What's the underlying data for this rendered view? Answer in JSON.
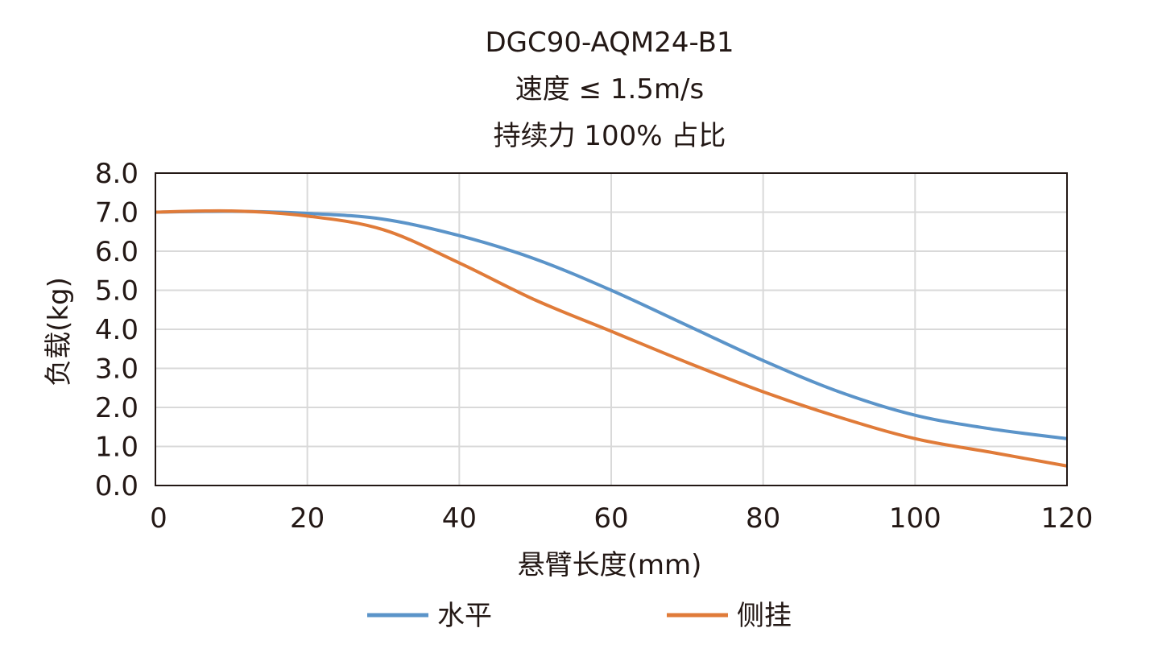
{
  "chart_data": {
    "type": "line",
    "title": [
      "DGC90-AQM24-B1",
      "速度 ≤ 1.5m/s",
      "持续力 100% 占比"
    ],
    "xlabel": "悬臂长度(mm)",
    "ylabel": "负载(kg)",
    "xlim": [
      0,
      120
    ],
    "ylim": [
      0,
      8
    ],
    "xticks": [
      "0",
      "20",
      "40",
      "60",
      "80",
      "100",
      "120"
    ],
    "yticks": [
      "0.0",
      "1.0",
      "2.0",
      "3.0",
      "4.0",
      "5.0",
      "6.0",
      "7.0",
      "8.0"
    ],
    "grid": true,
    "legend_position": "bottom",
    "x": [
      0,
      10,
      20,
      30,
      40,
      50,
      60,
      70,
      80,
      90,
      100,
      110,
      120
    ],
    "series": [
      {
        "name": "水平",
        "color": "#5b94c9",
        "values": [
          7.0,
          7.02,
          6.97,
          6.82,
          6.4,
          5.8,
          5.0,
          4.1,
          3.2,
          2.4,
          1.8,
          1.45,
          1.2
        ]
      },
      {
        "name": "侧挂",
        "color": "#e07b39",
        "values": [
          7.0,
          7.03,
          6.9,
          6.55,
          5.7,
          4.75,
          3.95,
          3.15,
          2.4,
          1.75,
          1.2,
          0.85,
          0.5
        ]
      }
    ]
  }
}
